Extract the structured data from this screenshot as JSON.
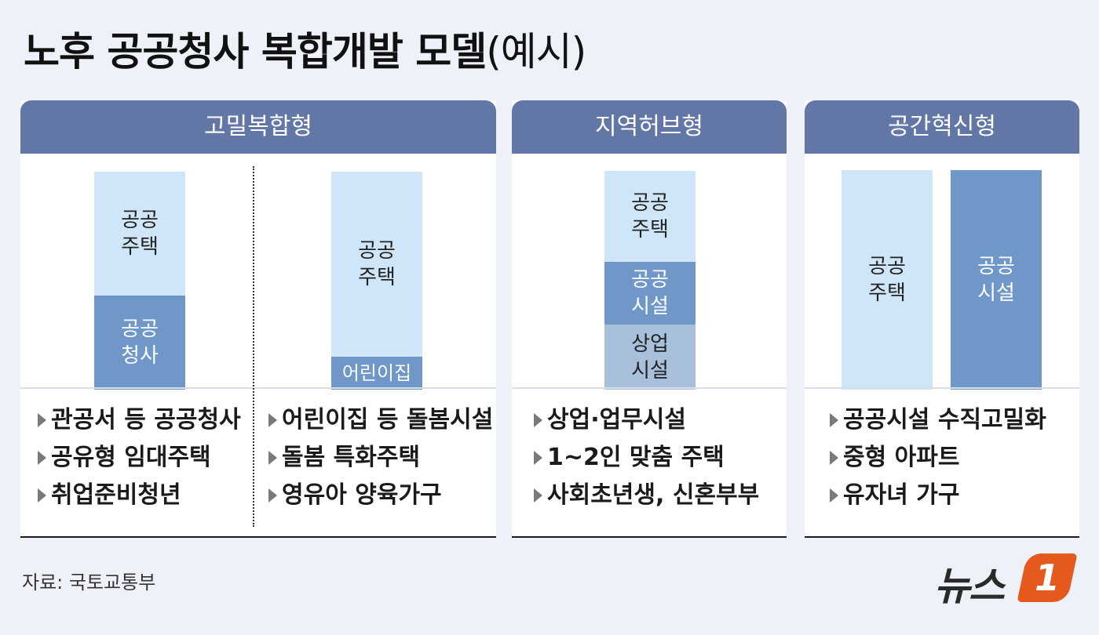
{
  "title": {
    "main": "노후 공공청사 복합개발 모델",
    "suffix": "(예시)"
  },
  "panels": [
    {
      "header": "고밀복합형",
      "left_column": {
        "top": "공공\n주택",
        "bottom": "공공\n청사"
      },
      "right_column": {
        "top": "공공\n주택",
        "bottom": "어린이집"
      },
      "left_bullets": [
        "관공서 등 공공청사",
        "공유형 임대주택",
        "취업준비청년"
      ],
      "right_bullets": [
        "어린이집 등 돌봄시설",
        "돌봄 특화주택",
        "영유아 양육가구"
      ]
    },
    {
      "header": "지역허브형",
      "column": {
        "top": "공공\n주택",
        "middle": "공공\n시설",
        "bottom": "상업\n시설"
      },
      "bullets": [
        "상업·업무시설",
        "1~2인 맞춤 주택",
        "사회초년생, 신혼부부"
      ]
    },
    {
      "header": "공간혁신형",
      "left_column": "공공\n주택",
      "right_column": "공공\n시설",
      "bullets": [
        "공공시설 수직고밀화",
        "중형 아파트",
        "유자녀 가구"
      ]
    }
  ],
  "source": "자료: 국토교통부",
  "logo": {
    "text": "뉴스",
    "badge": "1"
  },
  "colors": {
    "header": "#6277a6",
    "light": "#cfe6f8",
    "mid": "#6f97c8",
    "gray": "#a9c0db",
    "logo": "#e55a1c"
  }
}
